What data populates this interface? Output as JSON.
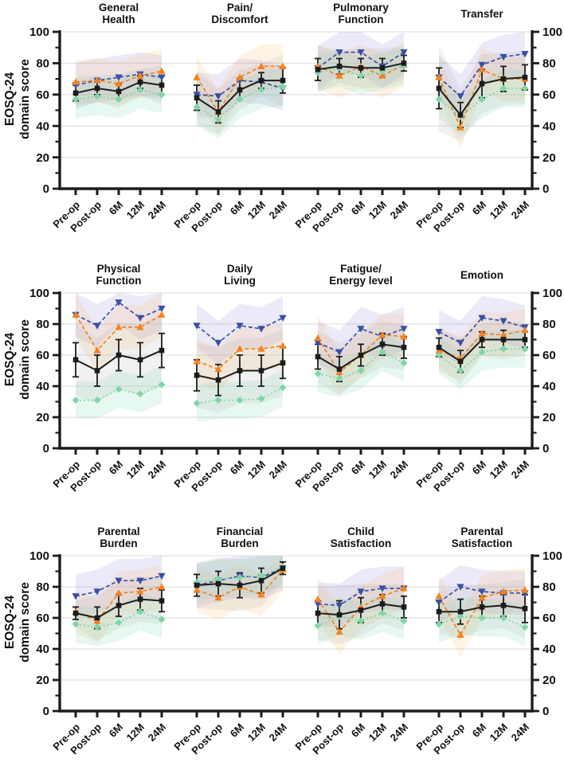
{
  "figure": {
    "ylabel_lines": [
      "EOSQ-24",
      "domain score"
    ]
  },
  "chart_data": {
    "type": "line",
    "title": "",
    "ylabel": "EOSQ-24 domain score",
    "categories": [
      "Pre-op",
      "Post-op",
      "6M",
      "12M",
      "24M"
    ],
    "y_axis": {
      "min": 0,
      "max": 100,
      "major_ticks": [
        0,
        20,
        40,
        60,
        80,
        100
      ],
      "minor_tick_step": 10,
      "shown_left": true,
      "shown_right": true
    },
    "grid": true,
    "legend_position": "none",
    "panel_grid": {
      "rows": 3,
      "cols": 4
    },
    "series_styles": [
      {
        "id": "black_squares",
        "color": "#1c1c1c",
        "marker": "square",
        "line": "solid",
        "error_bars": true,
        "band_color": "#b0b0b0",
        "band_opacity": 0.18,
        "band_delta": 0
      },
      {
        "id": "blue_triangles",
        "color": "#3a50a5",
        "marker": "triangle-down",
        "line": "dashed",
        "error_bars": false,
        "band_color": "#8a7fd6",
        "band_opacity": 0.16,
        "band_delta": 14
      },
      {
        "id": "orange_triangles",
        "color": "#f5821f",
        "marker": "triangle-up",
        "line": "dashed",
        "error_bars": false,
        "band_color": "#f9b35c",
        "band_opacity": 0.16,
        "band_delta": 14
      },
      {
        "id": "green_diamonds",
        "color": "#7ed6a7",
        "marker": "diamond",
        "line": "dotted",
        "error_bars": false,
        "band_color": "#8fe0b6",
        "band_opacity": 0.22,
        "band_delta": 12
      }
    ],
    "panels": [
      {
        "title_lines": [
          "General",
          "Health"
        ],
        "series": {
          "black_squares": [
            61,
            64,
            62,
            68,
            66
          ],
          "blue_triangles": [
            66,
            69,
            71,
            73,
            71
          ],
          "orange_triangles": [
            68,
            69,
            67,
            72,
            75
          ],
          "green_diamonds": [
            57,
            59,
            57,
            63,
            60
          ]
        },
        "black_error": [
          5,
          4,
          5,
          4,
          6
        ]
      },
      {
        "title_lines": [
          "Pain/",
          "Discomfort"
        ],
        "series": {
          "black_squares": [
            58,
            49,
            63,
            69,
            69
          ],
          "blue_triangles": [
            60,
            59,
            69,
            68,
            64
          ],
          "orange_triangles": [
            71,
            49,
            71,
            78,
            78
          ],
          "green_diamonds": [
            52,
            44,
            57,
            63,
            65
          ]
        },
        "black_error": [
          8,
          7,
          6,
          5,
          8
        ]
      },
      {
        "title_lines": [
          "Pulmonary",
          "Function"
        ],
        "series": {
          "black_squares": [
            76,
            78,
            77,
            77,
            80
          ],
          "blue_triangles": [
            77,
            87,
            87,
            78,
            87
          ],
          "orange_triangles": [
            78,
            72,
            78,
            72,
            79
          ],
          "green_diamonds": [
            74,
            77,
            72,
            75,
            78
          ]
        },
        "black_error": [
          7,
          5,
          6,
          6,
          5
        ]
      },
      {
        "title_lines": [
          "Transfer"
        ],
        "series": {
          "black_squares": [
            64,
            47,
            67,
            70,
            71
          ],
          "blue_triangles": [
            71,
            59,
            79,
            84,
            86
          ],
          "orange_triangles": [
            71,
            39,
            76,
            70,
            70
          ],
          "green_diamonds": [
            57,
            46,
            57,
            64,
            64
          ]
        },
        "black_error": [
          13,
          8,
          9,
          8,
          8
        ]
      },
      {
        "title_lines": [
          "Physical",
          "Function"
        ],
        "series": {
          "black_squares": [
            57,
            50,
            60,
            57,
            63
          ],
          "blue_triangles": [
            86,
            79,
            94,
            84,
            90
          ],
          "orange_triangles": [
            86,
            63,
            78,
            78,
            86
          ],
          "green_diamonds": [
            31,
            31,
            38,
            35,
            41
          ]
        },
        "black_error": [
          11,
          10,
          10,
          11,
          11
        ]
      },
      {
        "title_lines": [
          "Daily",
          "Living"
        ],
        "series": {
          "black_squares": [
            47,
            44,
            50,
            50,
            55
          ],
          "blue_triangles": [
            79,
            68,
            79,
            77,
            84
          ],
          "orange_triangles": [
            56,
            51,
            64,
            64,
            66
          ],
          "green_diamonds": [
            29,
            31,
            31,
            32,
            39
          ]
        },
        "black_error": [
          10,
          10,
          10,
          10,
          10
        ]
      },
      {
        "title_lines": [
          "Fatigue/",
          "Energy level"
        ],
        "series": {
          "black_squares": [
            59,
            51,
            60,
            67,
            65
          ],
          "blue_triangles": [
            68,
            62,
            77,
            72,
            77
          ],
          "orange_triangles": [
            71,
            49,
            60,
            73,
            72
          ],
          "green_diamonds": [
            48,
            45,
            50,
            62,
            55
          ]
        },
        "black_error": [
          8,
          8,
          7,
          7,
          7
        ]
      },
      {
        "title_lines": [
          "Emotion"
        ],
        "series": {
          "black_squares": [
            65,
            56,
            70,
            70,
            70
          ],
          "blue_triangles": [
            75,
            68,
            84,
            82,
            78
          ],
          "orange_triangles": [
            63,
            58,
            74,
            73,
            76
          ],
          "green_diamonds": [
            60,
            50,
            62,
            64,
            64
          ]
        },
        "black_error": [
          6,
          7,
          5,
          6,
          5
        ]
      },
      {
        "title_lines": [
          "Parental",
          "Burden"
        ],
        "series": {
          "black_squares": [
            63,
            60,
            68,
            72,
            71
          ],
          "blue_triangles": [
            74,
            77,
            84,
            84,
            87
          ],
          "orange_triangles": [
            64,
            58,
            76,
            77,
            80
          ],
          "green_diamonds": [
            56,
            54,
            57,
            64,
            59
          ]
        },
        "black_error": [
          4,
          7,
          7,
          7,
          7
        ]
      },
      {
        "title_lines": [
          "Financial",
          "Burden"
        ],
        "series": {
          "black_squares": [
            81,
            82,
            81,
            84,
            92
          ],
          "blue_triangles": [
            81,
            84,
            87,
            86,
            92
          ],
          "orange_triangles": [
            78,
            73,
            80,
            75,
            91
          ],
          "green_diamonds": [
            83,
            85,
            86,
            87,
            93
          ]
        },
        "black_error": [
          7,
          8,
          8,
          8,
          4
        ]
      },
      {
        "title_lines": [
          "Child",
          "Satisfaction"
        ],
        "series": {
          "black_squares": [
            63,
            62,
            65,
            69,
            67
          ],
          "blue_triangles": [
            69,
            68,
            77,
            79,
            79
          ],
          "orange_triangles": [
            72,
            51,
            67,
            74,
            79
          ],
          "green_diamonds": [
            55,
            61,
            58,
            63,
            58
          ]
        },
        "black_error": [
          8,
          9,
          8,
          6,
          7
        ]
      },
      {
        "title_lines": [
          "Parental",
          "Satisfaction"
        ],
        "series": {
          "black_squares": [
            64,
            64,
            67,
            68,
            66
          ],
          "blue_triangles": [
            70,
            80,
            77,
            76,
            76
          ],
          "orange_triangles": [
            74,
            49,
            73,
            77,
            78
          ],
          "green_diamonds": [
            56,
            61,
            60,
            60,
            54
          ]
        },
        "black_error": [
          7,
          8,
          7,
          7,
          9
        ]
      }
    ],
    "colors": {
      "axis": "#1c1c1c",
      "grid": "#e2e2e2",
      "black_series": "#1c1c1c",
      "blue_series": "#3a50a5",
      "orange_series": "#f5821f",
      "green_series": "#7ed6a7"
    }
  }
}
